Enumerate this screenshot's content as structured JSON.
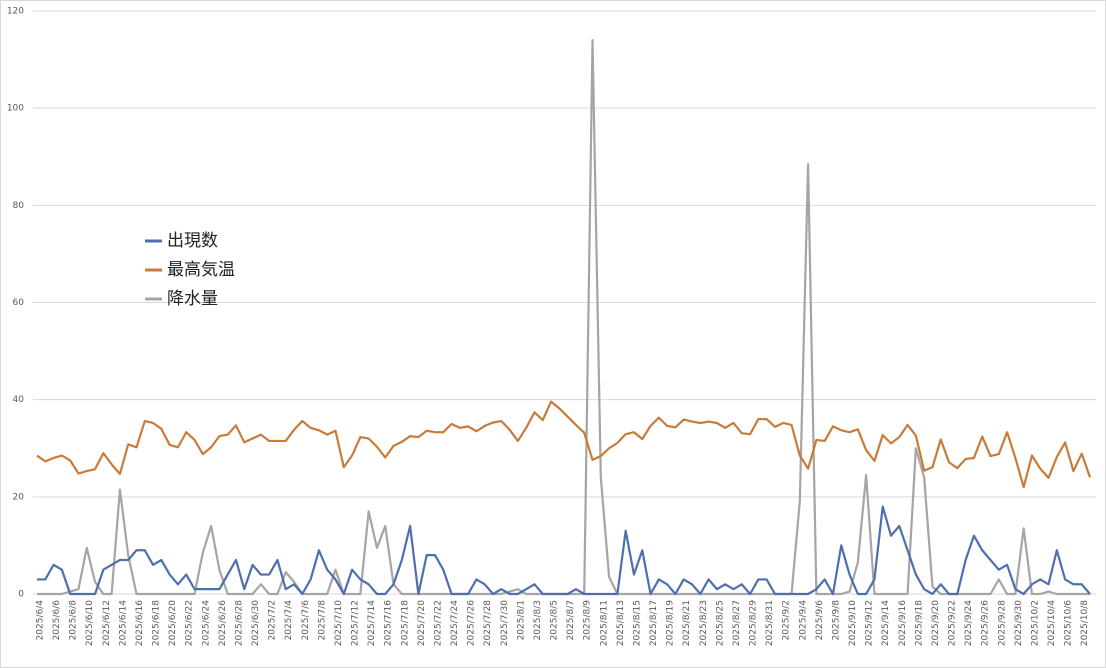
{
  "chart_data": {
    "type": "line",
    "categories": [
      "2025/6/4",
      null,
      "2025/6/6",
      null,
      "2025/6/8",
      null,
      "2025/6/10",
      null,
      "2025/6/12",
      null,
      "2025/6/14",
      null,
      "2025/6/16",
      null,
      "2025/6/18",
      null,
      "2025/6/20",
      null,
      "2025/6/22",
      null,
      "2025/6/24",
      null,
      "2025/6/26",
      null,
      "2025/6/28",
      null,
      "2025/6/30",
      null,
      "2025/7/2",
      null,
      "2025/7/4",
      null,
      "2025/7/6",
      null,
      "2025/7/8",
      null,
      "2025/7/10",
      null,
      "2025/7/12",
      null,
      "2025/7/14",
      null,
      "2025/7/16",
      null,
      "2025/7/18",
      null,
      "2025/7/20",
      null,
      "2025/7/22",
      null,
      "2025/7/24",
      null,
      "2025/7/26",
      null,
      "2025/7/28",
      null,
      "2025/7/30",
      null,
      "2025/8/1",
      null,
      "2025/8/3",
      null,
      "2025/8/5",
      null,
      "2025/8/7",
      null,
      "2025/8/9",
      null,
      "2025/8/11",
      null,
      "2025/8/13",
      null,
      "2025/8/15",
      null,
      "2025/8/17",
      null,
      "2025/8/19",
      null,
      "2025/8/21",
      null,
      "2025/8/23",
      null,
      "2025/8/25",
      null,
      "2025/8/27",
      null,
      "2025/8/29",
      null,
      "2025/8/31",
      null,
      "2025/9/2",
      null,
      "2025/9/4",
      null,
      "2025/9/6",
      null,
      "2025/9/8",
      null,
      "2025/9/10",
      null,
      "2025/9/12",
      null,
      "2025/9/14",
      null,
      "2025/9/16",
      null,
      "2025/9/18",
      null,
      "2025/9/20",
      null,
      "2025/9/22",
      null,
      "2025/9/24",
      null,
      "2025/9/26",
      null,
      "2025/9/28",
      null,
      "2025/9/30",
      null,
      "2025/10/2",
      null,
      "2025/10/4",
      null,
      "2025/10/6",
      null,
      "2025/10/8",
      null
    ],
    "series": [
      {
        "name": "出現数",
        "color": "#4e6fae",
        "values": [
          3,
          3,
          6,
          5,
          0,
          0,
          0,
          0,
          5,
          6,
          7,
          7,
          9,
          9,
          6,
          7,
          4,
          2,
          4,
          1,
          1,
          1,
          1,
          4,
          7,
          1,
          6,
          4,
          4,
          7,
          1,
          2,
          0,
          3,
          9,
          5,
          3,
          0,
          5,
          3,
          2,
          0,
          0,
          2,
          7,
          14,
          0,
          8,
          8,
          5,
          0,
          0,
          0,
          3,
          2,
          0,
          1,
          0,
          0,
          1,
          2,
          0,
          0,
          0,
          0,
          1,
          0,
          0,
          0,
          0,
          0,
          13,
          4,
          9,
          0,
          3,
          2,
          0,
          3,
          2,
          0,
          3,
          1,
          2,
          1,
          2,
          0,
          3,
          3,
          0,
          0,
          0,
          0,
          0,
          1,
          3,
          0,
          10,
          4,
          0,
          0,
          3,
          18,
          12,
          14,
          9,
          4,
          1,
          0,
          2,
          0,
          0,
          7,
          12,
          9,
          7,
          5,
          6,
          1,
          0,
          2,
          3,
          2,
          9,
          3,
          2,
          2,
          0
        ]
      },
      {
        "name": "最高気温",
        "color": "#c97b3a",
        "values": [
          28.5,
          27.3,
          28,
          28.5,
          27.5,
          24.8,
          25.3,
          25.7,
          29,
          26.7,
          24.7,
          30.8,
          30.2,
          35.6,
          35.2,
          34,
          30.7,
          30.2,
          33.3,
          31.7,
          28.8,
          30.2,
          32.5,
          32.8,
          34.7,
          31.2,
          32,
          32.8,
          31.5,
          31.5,
          31.5,
          33.8,
          35.6,
          34.2,
          33.7,
          32.8,
          33.6,
          26.1,
          28.5,
          32.3,
          32,
          30.3,
          28.1,
          30.5,
          31.3,
          32.5,
          32.3,
          33.6,
          33.3,
          33.3,
          35,
          34.2,
          34.5,
          33.5,
          34.6,
          35.3,
          35.6,
          33.8,
          31.5,
          34.2,
          37.4,
          35.8,
          39.6,
          38.2,
          36.5,
          34.8,
          33.2,
          27.6,
          28.4,
          30,
          31.1,
          32.9,
          33.3,
          31.9,
          34.6,
          36.3,
          34.6,
          34.3,
          35.9,
          35.5,
          35.2,
          35.5,
          35.2,
          34.2,
          35.2,
          33.1,
          32.9,
          36,
          36,
          34.4,
          35.2,
          34.8,
          28.5,
          25.8,
          31.7,
          31.5,
          34.5,
          33.7,
          33.3,
          33.9,
          29.6,
          27.4,
          32.7,
          31,
          32.3,
          34.8,
          32.6,
          25.4,
          26.1,
          31.8,
          27.1,
          25.9,
          27.8,
          28,
          32.4,
          28.4,
          28.8,
          33.3,
          28,
          22,
          28.5,
          25.8,
          23.9,
          28.2,
          31.2,
          25.3,
          28.9,
          24
        ]
      },
      {
        "name": "降水量",
        "color": "#a5a5a5",
        "values": [
          0,
          0,
          0,
          0,
          0.5,
          1,
          9.5,
          2.5,
          0,
          0,
          21.5,
          8,
          0,
          0,
          0,
          0,
          0,
          0,
          0,
          0,
          8.5,
          14,
          5,
          0,
          0,
          0,
          0,
          2,
          0,
          0,
          4.5,
          2.5,
          0,
          0,
          0,
          0,
          5,
          0,
          0,
          0,
          17,
          9.5,
          14,
          2,
          0,
          0,
          0,
          0,
          0,
          0,
          0,
          0,
          0,
          0,
          0,
          0,
          0,
          0.5,
          1,
          0,
          0,
          0,
          0,
          0,
          0,
          0,
          0,
          114,
          24,
          3.5,
          0,
          0,
          0,
          0,
          0,
          0,
          0,
          0,
          0,
          0,
          0,
          0,
          0,
          0,
          0,
          0,
          0,
          0,
          0,
          0,
          0,
          0,
          19,
          88.5,
          0,
          0,
          0,
          0,
          0.5,
          6.5,
          24.5,
          0,
          0,
          0,
          0,
          0,
          30,
          24,
          1.5,
          0,
          0,
          0,
          0,
          0,
          0,
          0,
          3,
          0,
          0,
          13.5,
          0,
          0,
          0.5,
          0,
          0,
          0,
          0,
          0
        ]
      }
    ],
    "ylim": [
      0,
      120
    ],
    "yticks": [
      0,
      20,
      40,
      60,
      80,
      100,
      120
    ],
    "grid": true
  }
}
